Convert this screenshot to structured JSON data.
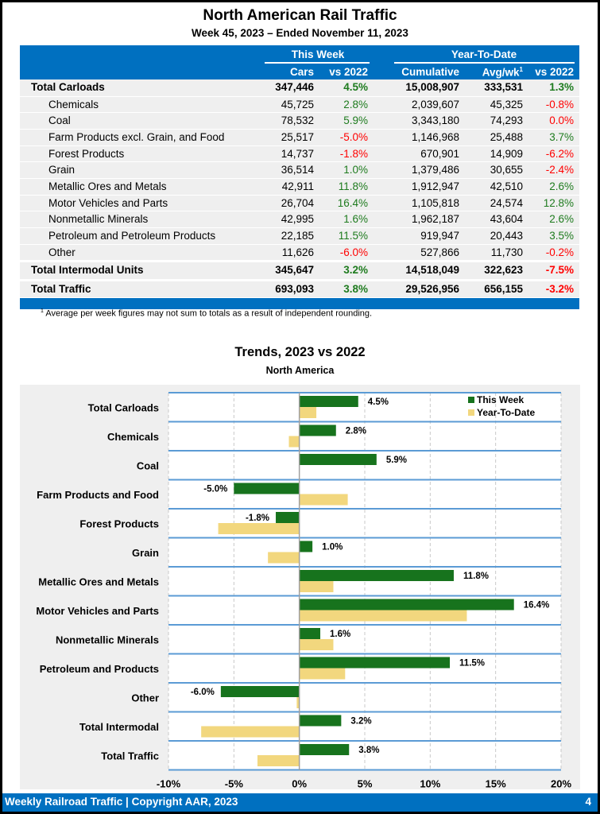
{
  "header": {
    "title": "North American Rail Traffic",
    "subtitle": "Week 45, 2023 – Ended November 11, 2023"
  },
  "table": {
    "group_headers": {
      "this_week": "This Week",
      "ytd": "Year-To-Date"
    },
    "columns": {
      "cars": "Cars",
      "tw_vs": "vs 2022",
      "cumulative": "Cumulative",
      "avg": "Avg/wk",
      "avg_sup": "1",
      "ytd_vs": "vs 2022"
    },
    "rows": [
      {
        "label": "Total Carloads",
        "bold": true,
        "sub": false,
        "cars": "347,446",
        "tw_vs": "4.5%",
        "cumulative": "15,008,907",
        "avg": "333,531",
        "ytd_vs": "1.3%"
      },
      {
        "label": "Chemicals",
        "bold": false,
        "sub": true,
        "cars": "45,725",
        "tw_vs": "2.8%",
        "cumulative": "2,039,607",
        "avg": "45,325",
        "ytd_vs": "-0.8%"
      },
      {
        "label": "Coal",
        "bold": false,
        "sub": true,
        "cars": "78,532",
        "tw_vs": "5.9%",
        "cumulative": "3,343,180",
        "avg": "74,293",
        "ytd_vs": "0.0%"
      },
      {
        "label": "Farm Products excl. Grain, and Food",
        "bold": false,
        "sub": true,
        "cars": "25,517",
        "tw_vs": "-5.0%",
        "cumulative": "1,146,968",
        "avg": "25,488",
        "ytd_vs": "3.7%"
      },
      {
        "label": "Forest Products",
        "bold": false,
        "sub": true,
        "cars": "14,737",
        "tw_vs": "-1.8%",
        "cumulative": "670,901",
        "avg": "14,909",
        "ytd_vs": "-6.2%"
      },
      {
        "label": "Grain",
        "bold": false,
        "sub": true,
        "cars": "36,514",
        "tw_vs": "1.0%",
        "cumulative": "1,379,486",
        "avg": "30,655",
        "ytd_vs": "-2.4%"
      },
      {
        "label": "Metallic Ores and Metals",
        "bold": false,
        "sub": true,
        "cars": "42,911",
        "tw_vs": "11.8%",
        "cumulative": "1,912,947",
        "avg": "42,510",
        "ytd_vs": "2.6%"
      },
      {
        "label": "Motor Vehicles and Parts",
        "bold": false,
        "sub": true,
        "cars": "26,704",
        "tw_vs": "16.4%",
        "cumulative": "1,105,818",
        "avg": "24,574",
        "ytd_vs": "12.8%"
      },
      {
        "label": "Nonmetallic Minerals",
        "bold": false,
        "sub": true,
        "cars": "42,995",
        "tw_vs": "1.6%",
        "cumulative": "1,962,187",
        "avg": "43,604",
        "ytd_vs": "2.6%"
      },
      {
        "label": "Petroleum and Petroleum Products",
        "bold": false,
        "sub": true,
        "cars": "22,185",
        "tw_vs": "11.5%",
        "cumulative": "919,947",
        "avg": "20,443",
        "ytd_vs": "3.5%"
      },
      {
        "label": "Other",
        "bold": false,
        "sub": true,
        "cars": "11,626",
        "tw_vs": "-6.0%",
        "cumulative": "527,866",
        "avg": "11,730",
        "ytd_vs": "-0.2%"
      },
      {
        "label": "Total Intermodal Units",
        "bold": true,
        "sub": false,
        "cars": "345,647",
        "tw_vs": "3.2%",
        "cumulative": "14,518,049",
        "avg": "322,623",
        "ytd_vs": "-7.5%"
      },
      {
        "label": "Total Traffic",
        "bold": true,
        "sub": false,
        "cars": "693,093",
        "tw_vs": "3.8%",
        "cumulative": "29,526,956",
        "avg": "656,155",
        "ytd_vs": "-3.2%"
      }
    ],
    "footnote_marker": "1",
    "footnote": "Average per week figures may not sum to totals as a result of independent rounding."
  },
  "colors": {
    "brand_blue": "#0070c0",
    "positive": "#1e7b1e",
    "negative": "#ff0000",
    "this_week_bar": "#17731d",
    "ytd_bar": "#f2d77e",
    "chart_bg": "#efefef",
    "row_line": "#5b9bd5"
  },
  "chart_data": {
    "type": "bar",
    "orientation": "horizontal",
    "title": "Trends, 2023 vs 2022",
    "subtitle": "North America",
    "xlabel": "",
    "ylabel": "",
    "xlim": [
      -10,
      20
    ],
    "x_ticks": [
      -10,
      -5,
      0,
      5,
      10,
      15,
      20
    ],
    "x_tick_labels": [
      "-10%",
      "-5%",
      "0%",
      "5%",
      "10%",
      "15%",
      "20%"
    ],
    "grid": true,
    "legend_position": "top-right",
    "categories": [
      "Total Carloads",
      "Chemicals",
      "Coal",
      "Farm Products and Food",
      "Forest Products",
      "Grain",
      "Metallic Ores and Metals",
      "Motor Vehicles and Parts",
      "Nonmetallic Minerals",
      "Petroleum and Products",
      "Other",
      "Total Intermodal",
      "Total Traffic"
    ],
    "series": [
      {
        "name": "This Week",
        "values": [
          4.5,
          2.8,
          5.9,
          -5.0,
          -1.8,
          1.0,
          11.8,
          16.4,
          1.6,
          11.5,
          -6.0,
          3.2,
          3.8
        ],
        "data_labels": [
          "4.5%",
          "2.8%",
          "5.9%",
          "-5.0%",
          "-1.8%",
          "1.0%",
          "11.8%",
          "16.4%",
          "1.6%",
          "11.5%",
          "-6.0%",
          "3.2%",
          "3.8%"
        ]
      },
      {
        "name": "Year-To-Date",
        "values": [
          1.3,
          -0.8,
          0.0,
          3.7,
          -6.2,
          -2.4,
          2.6,
          12.8,
          2.6,
          3.5,
          -0.2,
          -7.5,
          -3.2
        ]
      }
    ]
  },
  "footer": {
    "text": "Weekly Railroad Traffic | Copyright AAR, 2023",
    "page_number": "4"
  }
}
